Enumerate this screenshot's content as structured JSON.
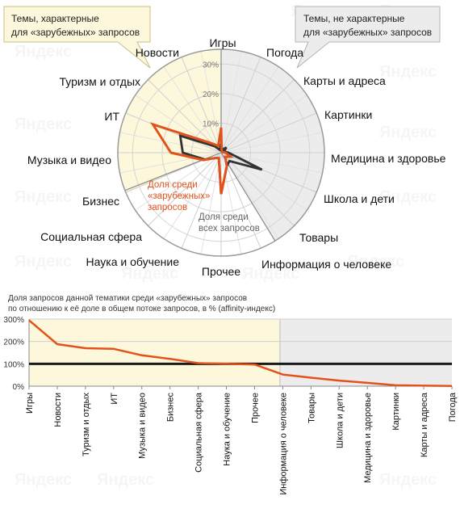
{
  "callouts": {
    "left": [
      "Темы, характерные",
      "для «зарубежных» запросов"
    ],
    "right": [
      "Темы, не характерные",
      "для «зарубежных» запросов"
    ]
  },
  "watermark_text": "Яндекс",
  "colors": {
    "foreign": "#e2531c",
    "all": "#333333",
    "affinity_line": "#e2531c",
    "baseline": "#1a1a1a",
    "characteristic_bg": "#fdf8dc",
    "non_characteristic_bg": "#ececec"
  },
  "chart_data": [
    {
      "type": "radar",
      "scale_labels": [
        "10%",
        "20%",
        "30%"
      ],
      "rmax": 35,
      "categories": [
        "Игры",
        "Погода",
        "Карты и адреса",
        "Картинки",
        "Медицина и здоровье",
        "Школа и дети",
        "Товары",
        "Информация о человеке",
        "Прочее",
        "Наука и обучение",
        "Социальная сфера",
        "Бизнес",
        "Музыка и видео",
        "ИТ",
        "Туризм и отдых",
        "Новости"
      ],
      "series": [
        {
          "name": "Доля среди «зарубежных» запросов",
          "label_lines": [
            "Доля среди",
            "«зарубежных»",
            "запросов"
          ],
          "values": [
            8.5,
            0.5,
            0.5,
            0.5,
            1.5,
            3.5,
            2.0,
            5.0,
            14.0,
            2.0,
            2.5,
            6.5,
            17.0,
            25.0,
            4.5,
            2.5
          ]
        },
        {
          "name": "Доля среди всех запросов",
          "label_lines": [
            "Доля среди",
            "всех запросов"
          ],
          "values": [
            3.0,
            1.0,
            2.5,
            1.0,
            2.5,
            15.0,
            4.0,
            5.0,
            14.0,
            2.0,
            2.5,
            6.0,
            13.0,
            15.0,
            3.0,
            1.0
          ]
        }
      ]
    },
    {
      "type": "line",
      "title_lines": [
        "Доля запросов данной тематики среди «зарубежных» запросов",
        "по отношению к её доле в общем потоке запросов, в % (affinity-индекс)"
      ],
      "categories": [
        "Игры",
        "Новости",
        "Туризм и отдых",
        "ИТ",
        "Музыка и видео",
        "Бизнес",
        "Социальная сфера",
        "Наука и обучение",
        "Прочее",
        "Информация о человеке",
        "Товары",
        "Школа и дети",
        "Медицина и здоровье",
        "Картинки",
        "Карты и адреса",
        "Погода"
      ],
      "values": [
        295,
        188,
        170,
        167,
        138,
        122,
        103,
        100,
        97,
        52,
        38,
        25,
        15,
        4,
        2,
        1
      ],
      "yticks": [
        0,
        100,
        200,
        300
      ],
      "ytick_labels": [
        "0%",
        "100%",
        "200%",
        "300%"
      ],
      "ylim": [
        0,
        300
      ],
      "reference_line": 100
    }
  ]
}
